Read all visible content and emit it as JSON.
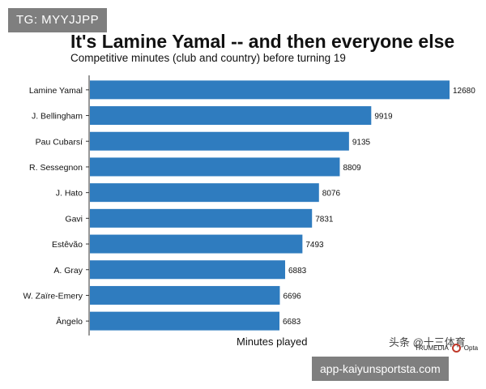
{
  "top_tag": "TG: MYYJJPP",
  "bottom_tag": "app-kaiyunsportsta.com",
  "watermark_text": "头条 @十三体育",
  "brand_text": "TRUMEDIA",
  "brand_logo_text": "Opta",
  "colors": {
    "bar": "#2f7cbf",
    "axis": "#333333"
  },
  "chart_data": {
    "type": "bar",
    "orientation": "horizontal",
    "title": "It's Lamine Yamal -- and then everyone else",
    "subtitle": "Competitive minutes (club and country) before turning 19",
    "xlabel": "Minutes played",
    "ylabel": "",
    "xlim": [
      0,
      12680
    ],
    "grid": false,
    "legend": "none",
    "categories": [
      "Lamine Yamal",
      "J. Bellingham",
      "Pau Cubarsí",
      "R. Sessegnon",
      "J. Hato",
      "Gavi",
      "Estêvão",
      "A. Gray",
      "W. Zaïre-Emery",
      "Ângelo"
    ],
    "values": [
      12680,
      9919,
      9135,
      8809,
      8076,
      7831,
      7493,
      6883,
      6696,
      6683
    ]
  }
}
